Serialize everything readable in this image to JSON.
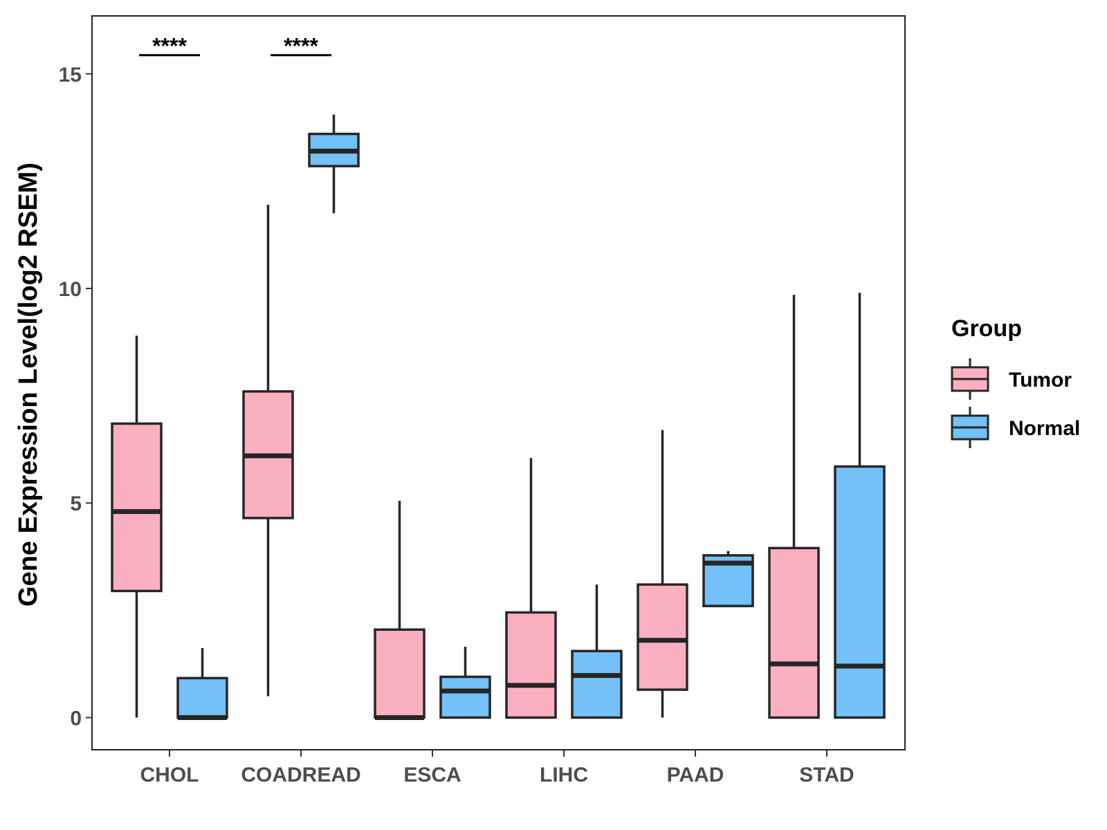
{
  "chart_data": {
    "type": "boxplot",
    "title": "",
    "xlabel": "",
    "ylabel": "Gene Expression Level(log2 RSEM)",
    "ylim": [
      -0.75,
      16.35
    ],
    "yticks": [
      0,
      5,
      10,
      15
    ],
    "categories": [
      "CHOL",
      "COADREAD",
      "ESCA",
      "LIHC",
      "PAAD",
      "STAD"
    ],
    "legend": {
      "title": "Group",
      "position": "right",
      "entries": [
        {
          "name": "Tumor",
          "color": "#FBB0C0"
        },
        {
          "name": "Normal",
          "color": "#74C0F8"
        }
      ]
    },
    "series": [
      {
        "name": "Tumor",
        "color": "#FBB0C0",
        "boxes": [
          {
            "category": "CHOL",
            "whisker_low": 0.0,
            "q1": 2.95,
            "median": 4.8,
            "q3": 6.85,
            "whisker_high": 8.9
          },
          {
            "category": "COADREAD",
            "whisker_low": 0.5,
            "q1": 4.65,
            "median": 6.1,
            "q3": 7.6,
            "whisker_high": 11.95
          },
          {
            "category": "ESCA",
            "whisker_low": 0.0,
            "q1": 0.0,
            "median": 0.0,
            "q3": 2.05,
            "whisker_high": 5.05
          },
          {
            "category": "LIHC",
            "whisker_low": 0.0,
            "q1": 0.0,
            "median": 0.75,
            "q3": 2.45,
            "whisker_high": 6.05
          },
          {
            "category": "PAAD",
            "whisker_low": 0.0,
            "q1": 0.65,
            "median": 1.8,
            "q3": 3.1,
            "whisker_high": 6.7
          },
          {
            "category": "STAD",
            "whisker_low": 0.0,
            "q1": 0.0,
            "median": 1.25,
            "q3": 3.95,
            "whisker_high": 9.85
          }
        ]
      },
      {
        "name": "Normal",
        "color": "#74C0F8",
        "boxes": [
          {
            "category": "CHOL",
            "whisker_low": 0.0,
            "q1": 0.0,
            "median": 0.0,
            "q3": 0.92,
            "whisker_high": 1.62
          },
          {
            "category": "COADREAD",
            "whisker_low": 11.75,
            "q1": 12.85,
            "median": 13.2,
            "q3": 13.6,
            "whisker_high": 14.05
          },
          {
            "category": "ESCA",
            "whisker_low": 0.0,
            "q1": 0.0,
            "median": 0.62,
            "q3": 0.95,
            "whisker_high": 1.65
          },
          {
            "category": "LIHC",
            "whisker_low": 0.0,
            "q1": 0.0,
            "median": 0.98,
            "q3": 1.55,
            "whisker_high": 3.1
          },
          {
            "category": "PAAD",
            "whisker_low": 2.6,
            "q1": 2.6,
            "median": 3.6,
            "q3": 3.78,
            "whisker_high": 3.88
          },
          {
            "category": "STAD",
            "whisker_low": 0.0,
            "q1": 0.0,
            "median": 1.2,
            "q3": 5.85,
            "whisker_high": 9.9
          }
        ]
      }
    ],
    "annotations": [
      {
        "category": "CHOL",
        "text": "****",
        "y": 15.5
      },
      {
        "category": "COADREAD",
        "text": "****",
        "y": 15.5
      }
    ]
  }
}
